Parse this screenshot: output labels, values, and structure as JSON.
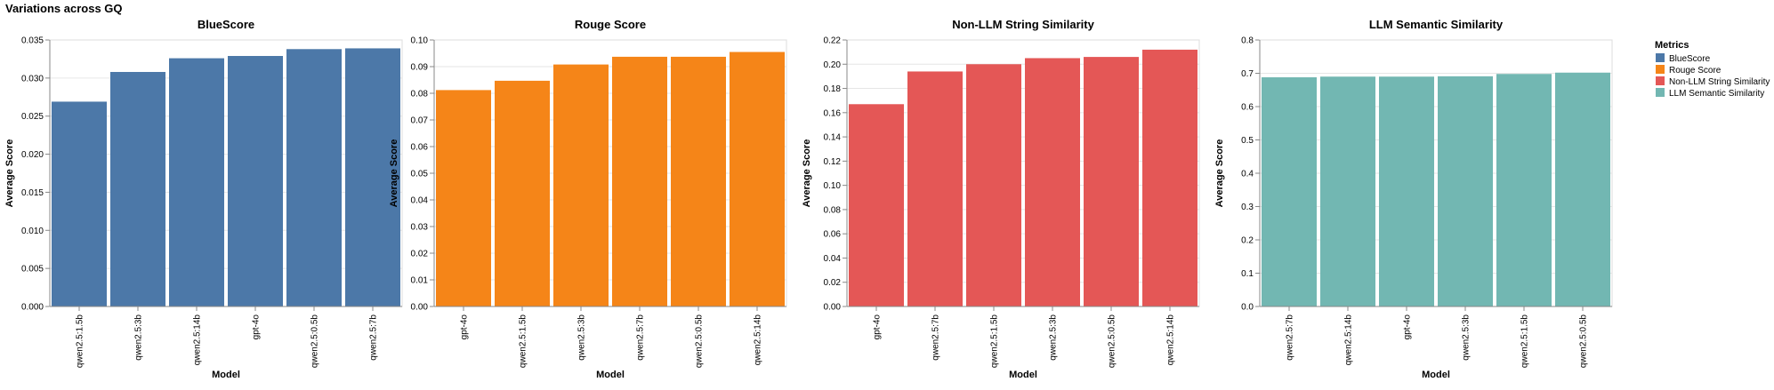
{
  "figure_title": "Variations across GQ",
  "legend": {
    "title": "Metrics",
    "placement": "right",
    "items": [
      {
        "label": "BlueScore",
        "color": "#4c78a8"
      },
      {
        "label": "Rouge Score",
        "color": "#f58518"
      },
      {
        "label": "Non-LLM String Similarity",
        "color": "#e45756"
      },
      {
        "label": "LLM Semantic Similarity",
        "color": "#72b7b2"
      }
    ]
  },
  "chart_data": [
    {
      "type": "bar",
      "title": "BlueScore",
      "xlabel": "Model",
      "ylabel": "Average Score",
      "color": "#4c78a8",
      "categories": [
        "qwen2.5:1.5b",
        "qwen2.5:3b",
        "qwen2.5:14b",
        "gpt-4o",
        "qwen2.5:0.5b",
        "qwen2.5:7b"
      ],
      "values": [
        0.0269,
        0.0308,
        0.0326,
        0.0329,
        0.0338,
        0.0339
      ],
      "ylim": [
        0,
        0.035
      ],
      "yticks": [
        "0.000",
        "0.005",
        "0.010",
        "0.015",
        "0.020",
        "0.025",
        "0.030",
        "0.035"
      ],
      "grid": true
    },
    {
      "type": "bar",
      "title": "Rouge Score",
      "xlabel": "Model",
      "ylabel": "Average Score",
      "color": "#f58518",
      "categories": [
        "gpt-4o",
        "qwen2.5:1.5b",
        "qwen2.5:3b",
        "qwen2.5:7b",
        "qwen2.5:0.5b",
        "qwen2.5:14b"
      ],
      "values": [
        0.0812,
        0.0847,
        0.0908,
        0.0937,
        0.0937,
        0.0955
      ],
      "ylim": [
        0,
        0.1
      ],
      "yticks": [
        "0.00",
        "0.01",
        "0.02",
        "0.03",
        "0.04",
        "0.05",
        "0.06",
        "0.07",
        "0.08",
        "0.09",
        "0.10"
      ],
      "grid": true
    },
    {
      "type": "bar",
      "title": "Non-LLM String Similarity",
      "xlabel": "Model",
      "ylabel": "Average Score",
      "color": "#e45756",
      "categories": [
        "gpt-4o",
        "qwen2.5:7b",
        "qwen2.5:1.5b",
        "qwen2.5:3b",
        "qwen2.5:0.5b",
        "qwen2.5:14b"
      ],
      "values": [
        0.167,
        0.194,
        0.2,
        0.205,
        0.206,
        0.212
      ],
      "ylim": [
        0,
        0.22
      ],
      "yticks": [
        "0.00",
        "0.02",
        "0.04",
        "0.06",
        "0.08",
        "0.10",
        "0.12",
        "0.14",
        "0.16",
        "0.18",
        "0.20",
        "0.22"
      ],
      "grid": true
    },
    {
      "type": "bar",
      "title": "LLM Semantic Similarity",
      "xlabel": "Model",
      "ylabel": "Average Score",
      "color": "#72b7b2",
      "categories": [
        "qwen2.5:7b",
        "qwen2.5:14b",
        "gpt-4o",
        "qwen2.5:3b",
        "qwen2.5:1.5b",
        "qwen2.5:0.5b"
      ],
      "values": [
        0.688,
        0.69,
        0.69,
        0.691,
        0.698,
        0.702
      ],
      "ylim": [
        0,
        0.8
      ],
      "yticks": [
        "0.0",
        "0.1",
        "0.2",
        "0.3",
        "0.4",
        "0.5",
        "0.6",
        "0.7",
        "0.8"
      ],
      "grid": true
    }
  ]
}
